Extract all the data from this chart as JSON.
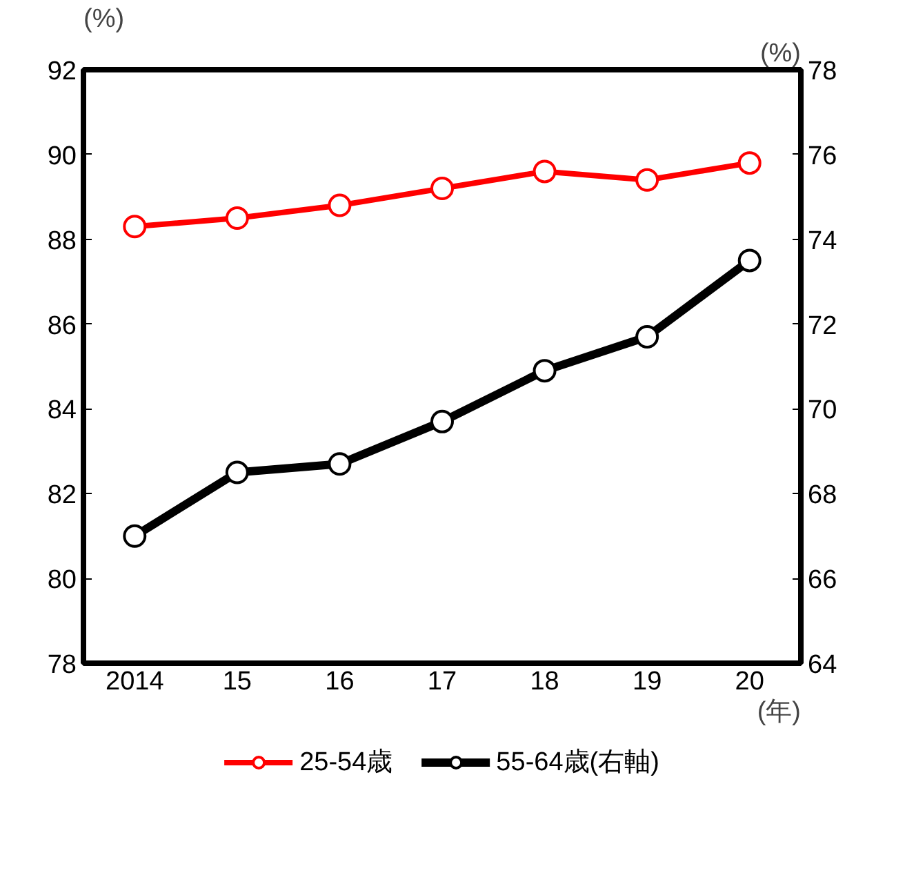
{
  "chart_data": {
    "type": "line",
    "categories": [
      "2014",
      "15",
      "16",
      "17",
      "18",
      "19",
      "20"
    ],
    "xlabel": "(年)",
    "ylabel": "(%)",
    "y2label": "(%)",
    "ylim": [
      78,
      92
    ],
    "yticks": [
      78,
      80,
      82,
      84,
      86,
      88,
      90,
      92
    ],
    "y2lim": [
      64,
      78
    ],
    "y2ticks": [
      64,
      66,
      68,
      70,
      72,
      74,
      76,
      78
    ],
    "marker": "circle",
    "legend": "bottom",
    "grid": false,
    "series": [
      {
        "name": "25-54歳",
        "color": "#ff0000",
        "values": [
          88.3,
          88.5,
          88.8,
          89.2,
          89.6,
          89.4,
          89.8
        ]
      },
      {
        "name": "55-64歳(右軸)",
        "color": "#000000",
        "axis": "y2",
        "values": [
          67.0,
          68.5,
          68.7,
          69.7,
          70.9,
          71.7,
          73.5
        ]
      }
    ]
  }
}
